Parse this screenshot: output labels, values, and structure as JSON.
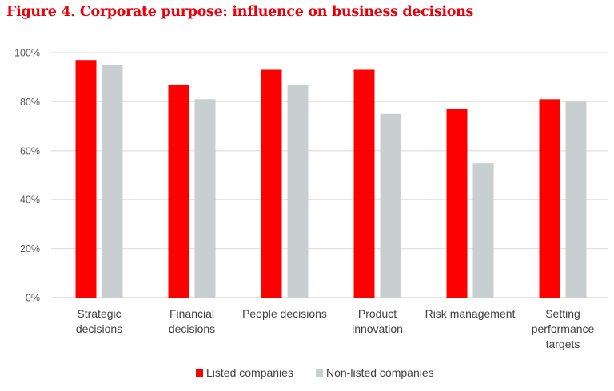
{
  "chart_data": {
    "type": "bar",
    "title": "Figure 4. Corporate purpose: influence on business decisions",
    "categories": [
      [
        "Strategic",
        "decisions"
      ],
      [
        "Financial",
        "decisions"
      ],
      [
        "People decisions"
      ],
      [
        "Product",
        "innovation"
      ],
      [
        "Risk management"
      ],
      [
        "Setting",
        "performance",
        "targets"
      ]
    ],
    "series": [
      {
        "name": "Listed companies",
        "color": "#ff0000",
        "values": [
          97,
          87,
          93,
          93,
          77,
          81
        ]
      },
      {
        "name": "Non-listed companies",
        "color": "#c9ced1",
        "values": [
          95,
          81,
          87,
          75,
          55,
          80
        ]
      }
    ],
    "ylim": [
      0,
      100
    ],
    "yticks": [
      0,
      20,
      40,
      60,
      80,
      100
    ],
    "ytick_format": "%",
    "grid": true,
    "legend": "bottom"
  }
}
